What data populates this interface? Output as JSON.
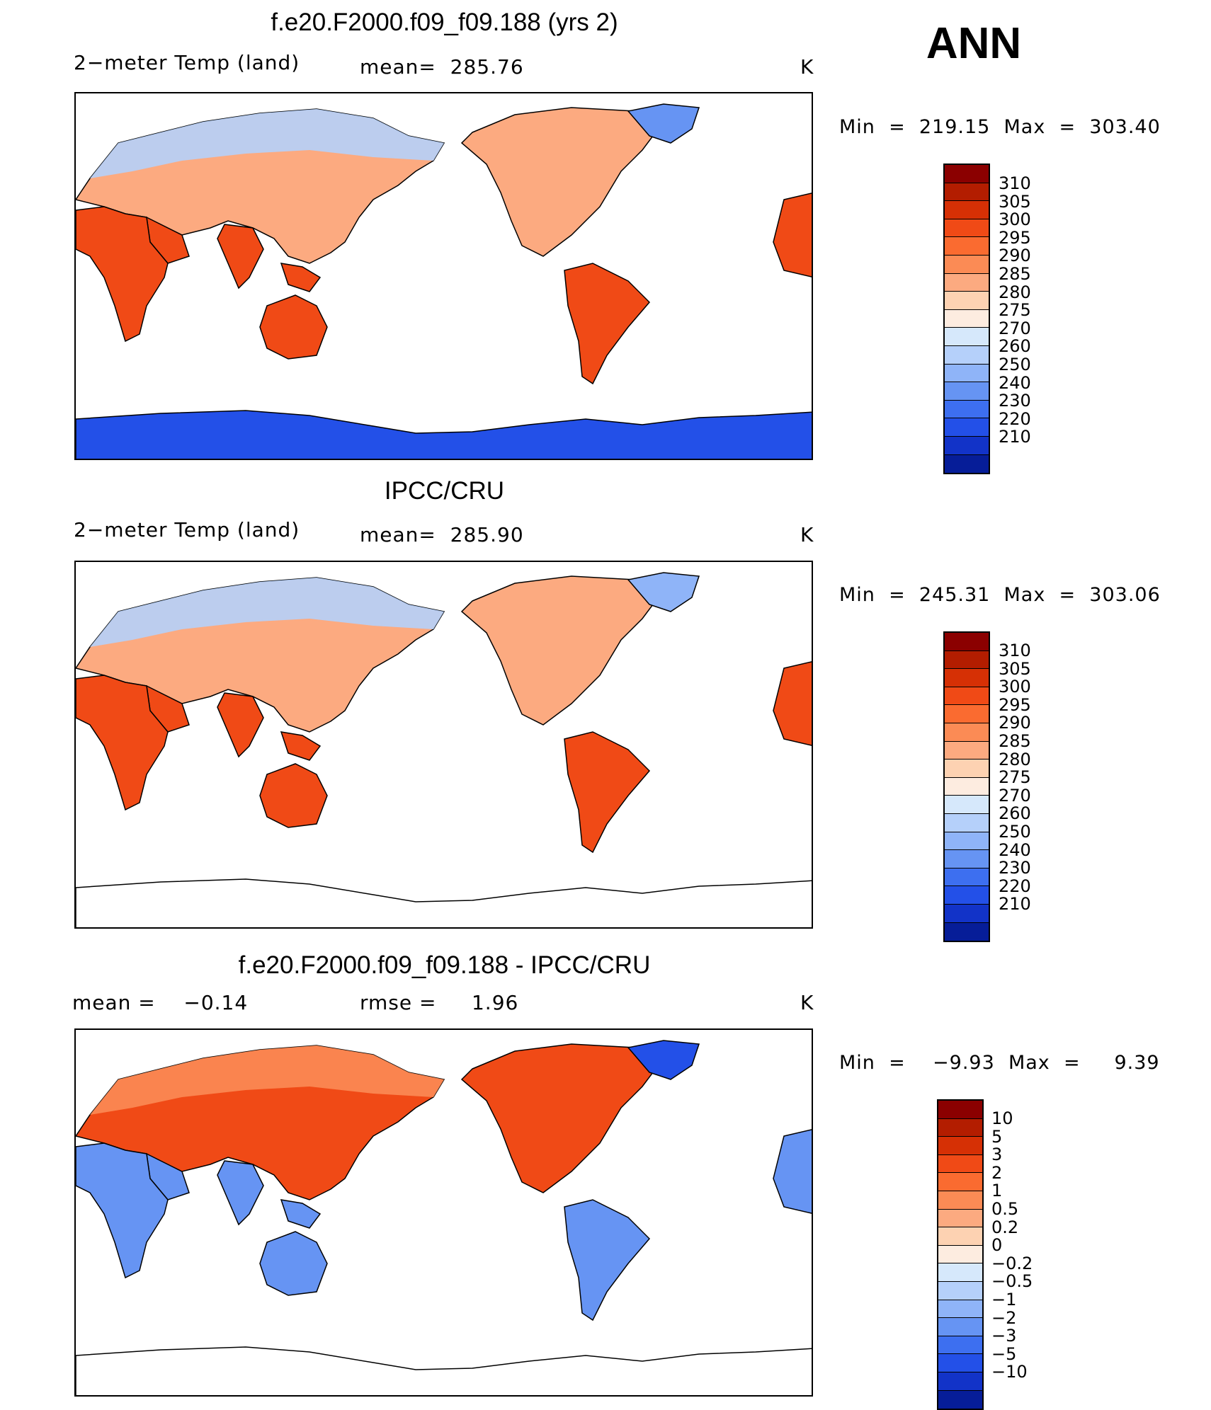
{
  "season_label": "ANN",
  "units": "K",
  "panels": [
    {
      "title": "f.e20.F2000.f09_f09.188 (yrs 2)",
      "subtitle_left": "2−meter Temp (land)",
      "subtitle_mid": "mean=  285.76",
      "subtitle_right": "K",
      "min_text": "Min  =  219.15",
      "max_text": "Max  =  303.40",
      "colorbar_labels": [
        "310",
        "305",
        "300",
        "295",
        "290",
        "285",
        "280",
        "275",
        "270",
        "260",
        "250",
        "240",
        "230",
        "220",
        "210"
      ],
      "colorbar_colors": [
        "#8b0000",
        "#b31d00",
        "#d63005",
        "#f04a16",
        "#fa6b30",
        "#fb8b55",
        "#fcaa80",
        "#fdd2b2",
        "#fdece0",
        "#d6e8fb",
        "#b5d0fa",
        "#8fb4f8",
        "#6694f3",
        "#3d6ff0",
        "#2350e8",
        "#1233c8",
        "#061d98"
      ],
      "antarctica_colored": true
    },
    {
      "title": "IPCC/CRU",
      "subtitle_left": "2−meter Temp (land)",
      "subtitle_mid": "mean=  285.90",
      "subtitle_right": "K",
      "min_text": "Min  =  245.31",
      "max_text": "Max  =  303.06",
      "colorbar_labels": [
        "310",
        "305",
        "300",
        "295",
        "290",
        "285",
        "280",
        "275",
        "270",
        "260",
        "250",
        "240",
        "230",
        "220",
        "210"
      ],
      "colorbar_colors": [
        "#8b0000",
        "#b31d00",
        "#d63005",
        "#f04a16",
        "#fa6b30",
        "#fb8b55",
        "#fcaa80",
        "#fdd2b2",
        "#fdece0",
        "#d6e8fb",
        "#b5d0fa",
        "#8fb4f8",
        "#6694f3",
        "#3d6ff0",
        "#2350e8",
        "#1233c8",
        "#061d98"
      ],
      "antarctica_colored": false
    },
    {
      "title": "f.e20.F2000.f09_f09.188 - IPCC/CRU",
      "subtitle_left": "mean =    −0.14",
      "subtitle_mid": "rmse =     1.96",
      "subtitle_right": "K",
      "min_text": "Min  =    −9.93",
      "max_text": "Max  =     9.39",
      "colorbar_labels": [
        "10",
        "5",
        "3",
        "2",
        "1",
        "0.5",
        "0.2",
        "0",
        "−0.2",
        "−0.5",
        "−1",
        "−2",
        "−3",
        "−5",
        "−10"
      ],
      "colorbar_colors": [
        "#8b0000",
        "#b31d00",
        "#d63005",
        "#f04a16",
        "#fa6b30",
        "#fb8b55",
        "#fcaa80",
        "#fdd2b2",
        "#fdece0",
        "#d6e8fb",
        "#b5d0fa",
        "#8fb4f8",
        "#6694f3",
        "#3d6ff0",
        "#2350e8",
        "#1233c8",
        "#061d98"
      ],
      "antarctica_colored": false
    }
  ]
}
